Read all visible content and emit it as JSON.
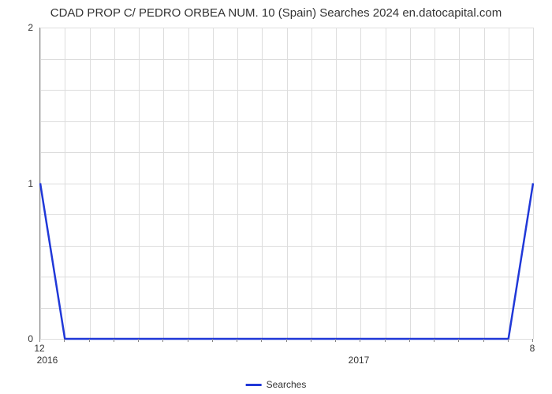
{
  "chart": {
    "type": "line",
    "title": "CDAD PROP C/ PEDRO ORBEA NUM. 10 (Spain) Searches 2024 en.datocapital.com",
    "title_fontsize": 15,
    "title_color": "#333333",
    "background_color": "#ffffff",
    "grid_color": "#dddddd",
    "axis_color": "#888888",
    "tick_label_fontsize": 12,
    "tick_label_color": "#333333",
    "y_axis": {
      "min": 0,
      "max": 2,
      "major_ticks": [
        0,
        1,
        2
      ],
      "minor_per_major": 5
    },
    "x_axis": {
      "left_label": "12",
      "right_label": "8",
      "left_year": "2016",
      "mid_year": "2017",
      "minor_ticks_count": 21
    },
    "series": {
      "label": "Searches",
      "color": "#2038d8",
      "line_width": 2.5,
      "x": [
        0,
        1,
        2,
        3,
        4,
        5,
        6,
        7,
        8,
        9,
        10,
        11,
        12,
        13,
        14,
        15,
        16,
        17,
        18,
        19,
        20
      ],
      "y": [
        1,
        0,
        0,
        0,
        0,
        0,
        0,
        0,
        0,
        0,
        0,
        0,
        0,
        0,
        0,
        0,
        0,
        0,
        0,
        0,
        1
      ]
    },
    "legend": {
      "label": "Searches",
      "swatch_color": "#2038d8"
    }
  }
}
